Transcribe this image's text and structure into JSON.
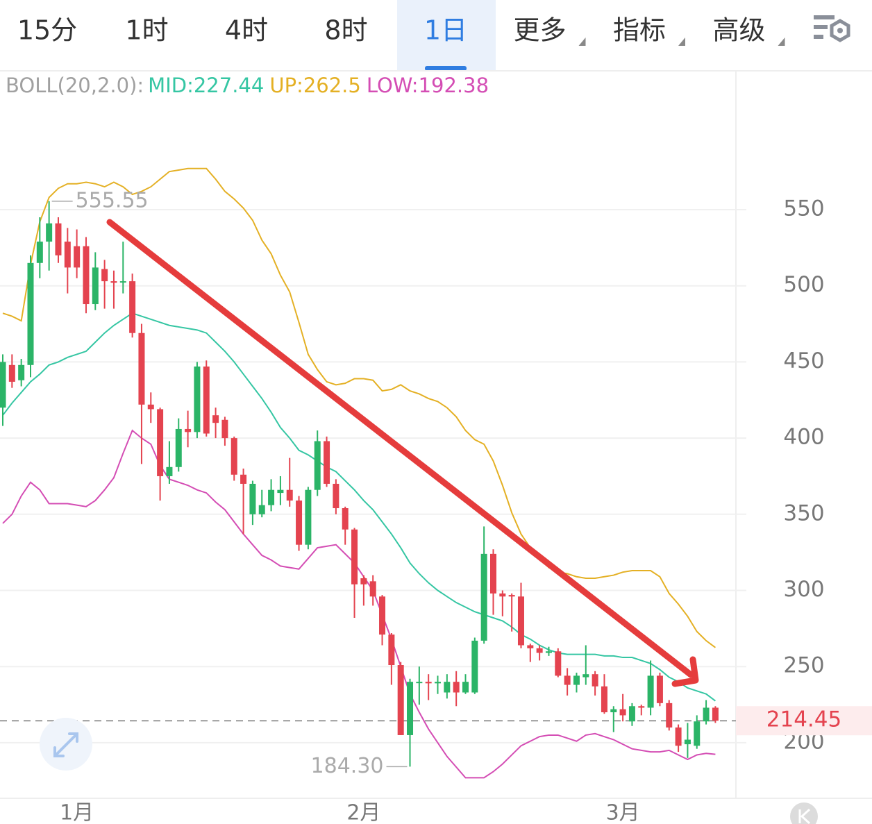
{
  "ui": {
    "tabs": [
      {
        "label": "15分"
      },
      {
        "label": "1时"
      },
      {
        "label": "4时"
      },
      {
        "label": "8时"
      },
      {
        "label": "1日"
      },
      {
        "label": "更多",
        "dropdown": true
      },
      {
        "label": "指标",
        "dropdown": true
      },
      {
        "label": "高级",
        "dropdown": true
      }
    ],
    "active_tab": 4
  },
  "chart_data": {
    "type": "candlestick",
    "indicator": "BOLL(20,2.0):",
    "categories": [
      null,
      null,
      null,
      null,
      null,
      null,
      null,
      null,
      "1月",
      null,
      null,
      null,
      null,
      null,
      null,
      null,
      null,
      null,
      null,
      null,
      null,
      null,
      null,
      null,
      null,
      null,
      null,
      null,
      null,
      null,
      null,
      null,
      null,
      null,
      null,
      null,
      null,
      null,
      null,
      "2月",
      null,
      null,
      null,
      null,
      null,
      null,
      null,
      null,
      null,
      null,
      null,
      null,
      null,
      null,
      null,
      null,
      null,
      null,
      null,
      null,
      null,
      null,
      null,
      null,
      null,
      null,
      null,
      "3月",
      null,
      null,
      null,
      null,
      null,
      null,
      null,
      null,
      null,
      null
    ],
    "open": [
      420,
      448,
      438,
      448,
      515,
      529,
      541,
      529,
      526,
      526,
      488,
      511,
      503,
      503,
      503,
      469,
      422,
      419,
      375,
      381,
      406,
      404,
      447,
      415,
      412,
      400,
      376,
      350,
      350,
      356,
      364,
      366,
      359,
      330,
      366,
      398,
      370,
      354,
      340,
      308,
      306,
      296,
      271,
      251,
      205,
      240,
      240,
      239,
      233,
      240,
      233,
      233,
      267,
      324,
      298,
      297,
      296,
      264,
      262,
      259,
      260,
      244,
      238,
      243,
      245,
      237,
      220,
      222,
      214,
      224,
      223,
      244,
      226,
      210,
      199,
      198,
      214,
      223
    ],
    "high": [
      455,
      455,
      452,
      520,
      545,
      555.55,
      545,
      538,
      537,
      532,
      522,
      517,
      510,
      529,
      508,
      475,
      430,
      420,
      398,
      413,
      418,
      450,
      451,
      420,
      414,
      401,
      380,
      372,
      366,
      373,
      375,
      387,
      362,
      368,
      405,
      401,
      373,
      355,
      341,
      310,
      310,
      297,
      272,
      253,
      242,
      250,
      245,
      244,
      245,
      247,
      245,
      269,
      342,
      327,
      300,
      298,
      305,
      265,
      264,
      263,
      262,
      249,
      246,
      264,
      247,
      245,
      224,
      232,
      226,
      225,
      254,
      246,
      228,
      212,
      213,
      218,
      228,
      224
    ],
    "low": [
      408,
      433,
      434,
      440,
      505,
      510,
      515,
      495,
      505,
      482,
      484,
      485,
      485,
      495,
      466,
      383,
      410,
      359,
      370,
      378,
      394,
      400,
      401,
      400,
      395,
      372,
      337,
      343,
      348,
      352,
      356,
      355,
      326,
      327,
      362,
      368,
      350,
      330,
      282,
      290,
      290,
      264,
      238,
      205,
      184.3,
      225,
      228,
      232,
      229,
      224,
      232,
      232,
      265,
      284,
      283,
      273,
      262,
      253,
      254,
      257,
      243,
      231,
      233,
      238,
      231,
      219,
      207,
      214,
      211,
      218,
      218,
      224,
      208,
      194,
      190,
      196,
      212,
      213
    ],
    "close": [
      450,
      437,
      448,
      515,
      529,
      541,
      520,
      512,
      512,
      488,
      512,
      503,
      502,
      503,
      469,
      422,
      419,
      375,
      381,
      406,
      404,
      447,
      403,
      410,
      400,
      376,
      370,
      370,
      356,
      366,
      366,
      359,
      330,
      366,
      398,
      370,
      354,
      340,
      304,
      304,
      296,
      271,
      251,
      205,
      240,
      240,
      239,
      240,
      240,
      233,
      240,
      267,
      324,
      298,
      296,
      296,
      264,
      262,
      259,
      260,
      244,
      238,
      244,
      245,
      237,
      220,
      222,
      218,
      224,
      223,
      244,
      226,
      210,
      198,
      202,
      214,
      223,
      214.45
    ],
    "up_color": "#2bb467",
    "down_color": "#e4434f",
    "series": [
      {
        "name": "MID:",
        "color": "#35c6a3",
        "values": [
          415,
          423,
          430,
          437,
          442,
          448,
          450,
          453,
          455,
          457,
          463,
          469,
          474,
          478,
          482,
          480,
          478,
          476,
          474,
          473,
          472,
          471,
          469,
          463,
          457,
          450,
          442,
          434,
          426,
          417,
          407,
          400,
          392,
          389,
          385,
          381,
          378,
          372,
          366,
          359,
          353,
          345,
          337,
          328,
          318,
          311,
          305,
          300,
          296,
          292,
          289,
          286,
          284,
          282,
          280,
          276,
          271,
          268,
          264,
          261,
          259,
          258,
          258,
          258,
          258,
          257,
          257,
          256,
          256,
          254,
          252,
          248,
          243,
          240,
          236,
          234,
          232,
          227.44
        ]
      },
      {
        "name": "UP:",
        "color": "#e4b024",
        "values": [
          482,
          480,
          477,
          514,
          542,
          558,
          564,
          567,
          567,
          568,
          567,
          565,
          568,
          565,
          560,
          562,
          565,
          570,
          575,
          576,
          577,
          577,
          577,
          570,
          562,
          557,
          551,
          543,
          530,
          521,
          507,
          496,
          476,
          455,
          445,
          437,
          435,
          436,
          439,
          439,
          438,
          431,
          432,
          435,
          431,
          429,
          426,
          424,
          420,
          414,
          405,
          399,
          396,
          385,
          369,
          351,
          337,
          328,
          321,
          315,
          312,
          311,
          309,
          308,
          308,
          309,
          310,
          312,
          313,
          313,
          313,
          309,
          298,
          291,
          283,
          273,
          267,
          262.5
        ]
      },
      {
        "name": "LOW:",
        "color": "#d44db4",
        "values": [
          344,
          350,
          362,
          371,
          366,
          357,
          357,
          357,
          356,
          355,
          359,
          366,
          374,
          390,
          405,
          400,
          396,
          382,
          373,
          371,
          369,
          366,
          364,
          358,
          353,
          345,
          337,
          330,
          323,
          320,
          316,
          315,
          314,
          321,
          328,
          329,
          330,
          324,
          318,
          309,
          300,
          284,
          268,
          250,
          232,
          220,
          209,
          200,
          191,
          184,
          177,
          177,
          177,
          181,
          186,
          192,
          198,
          201,
          204,
          205,
          205,
          203,
          201,
          205,
          206,
          204,
          202,
          199,
          196,
          195,
          194,
          194,
          195,
          192,
          189,
          192,
          193,
          192.38
        ]
      }
    ],
    "ylim": [
      163.5,
      640.7
    ],
    "yticks": [
      200,
      250,
      300,
      350,
      400,
      450,
      500,
      550
    ],
    "grid": true,
    "last_price": 214.45,
    "max_label": "555.55",
    "min_label": "184.30"
  }
}
